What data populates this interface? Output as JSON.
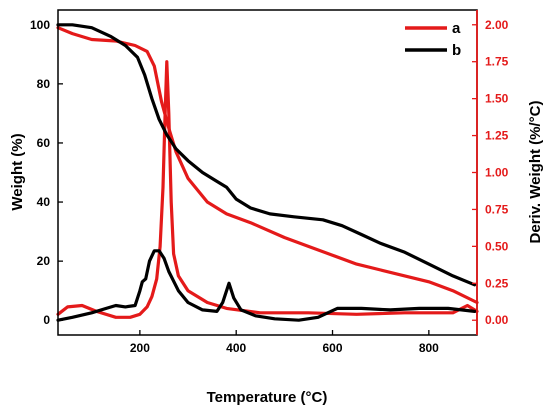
{
  "chart_data": {
    "type": "line",
    "xlabel": "Temperature (°C)",
    "ylabel_left": "Weight (%)",
    "ylabel_right": "Deriv. Weight (%/°C)",
    "xlim": [
      30,
      900
    ],
    "ylim_left": [
      -5,
      105
    ],
    "ylim_right": [
      -0.1,
      2.1
    ],
    "x_ticks": [
      200,
      400,
      600,
      800
    ],
    "y_left_ticks": [
      0,
      20,
      40,
      60,
      80,
      100
    ],
    "y_right_ticks": [
      "0.00",
      "0.25",
      "0.50",
      "0.75",
      "1.00",
      "1.25",
      "1.50",
      "1.75",
      "2.00"
    ],
    "grid": false,
    "legend_position": "top-right",
    "colors": {
      "a": "#e41a1a",
      "b": "#000000",
      "right_axis": "#e41a1a"
    },
    "series": [
      {
        "name": "a",
        "role": "weight",
        "axis": "left",
        "x": [
          30,
          60,
          100,
          150,
          190,
          215,
          230,
          245,
          260,
          275,
          300,
          340,
          380,
          430,
          500,
          550,
          600,
          650,
          700,
          750,
          800,
          850,
          900
        ],
        "y": [
          99,
          97,
          95,
          94.5,
          93,
          91,
          86,
          74,
          65,
          57,
          48,
          40,
          36,
          33,
          28,
          25,
          22,
          19,
          17,
          15,
          13,
          10,
          6
        ]
      },
      {
        "name": "a",
        "role": "derivative",
        "axis": "right",
        "x": [
          30,
          50,
          80,
          110,
          150,
          180,
          200,
          215,
          225,
          235,
          242,
          248,
          252,
          256,
          260,
          265,
          270,
          280,
          300,
          340,
          380,
          450,
          550,
          650,
          750,
          850,
          880,
          900
        ],
        "y": [
          0.04,
          0.09,
          0.1,
          0.06,
          0.02,
          0.02,
          0.04,
          0.09,
          0.16,
          0.28,
          0.5,
          0.9,
          1.35,
          1.75,
          1.4,
          0.8,
          0.45,
          0.3,
          0.2,
          0.12,
          0.08,
          0.05,
          0.05,
          0.04,
          0.05,
          0.05,
          0.1,
          0.06
        ]
      },
      {
        "name": "b",
        "role": "weight",
        "axis": "left",
        "x": [
          30,
          60,
          100,
          140,
          170,
          195,
          210,
          225,
          240,
          255,
          275,
          300,
          330,
          360,
          380,
          400,
          430,
          470,
          520,
          580,
          620,
          660,
          700,
          750,
          800,
          850,
          895
        ],
        "y": [
          100,
          100,
          99,
          96,
          93,
          89,
          83,
          75,
          68,
          63,
          58,
          54,
          50,
          47,
          45,
          41,
          38,
          36,
          35,
          34,
          32,
          29,
          26,
          23,
          19,
          15,
          12
        ]
      },
      {
        "name": "b",
        "role": "derivative",
        "axis": "right",
        "x": [
          30,
          60,
          100,
          130,
          150,
          170,
          190,
          200,
          205,
          212,
          220,
          230,
          240,
          250,
          260,
          280,
          300,
          330,
          360,
          372,
          385,
          395,
          410,
          440,
          480,
          530,
          570,
          610,
          660,
          720,
          780,
          840,
          895
        ],
        "y": [
          0.0,
          0.02,
          0.05,
          0.08,
          0.1,
          0.09,
          0.1,
          0.2,
          0.26,
          0.28,
          0.4,
          0.47,
          0.47,
          0.42,
          0.33,
          0.2,
          0.12,
          0.07,
          0.06,
          0.12,
          0.25,
          0.15,
          0.07,
          0.03,
          0.01,
          0.0,
          0.02,
          0.08,
          0.08,
          0.07,
          0.08,
          0.08,
          0.06
        ]
      }
    ]
  }
}
